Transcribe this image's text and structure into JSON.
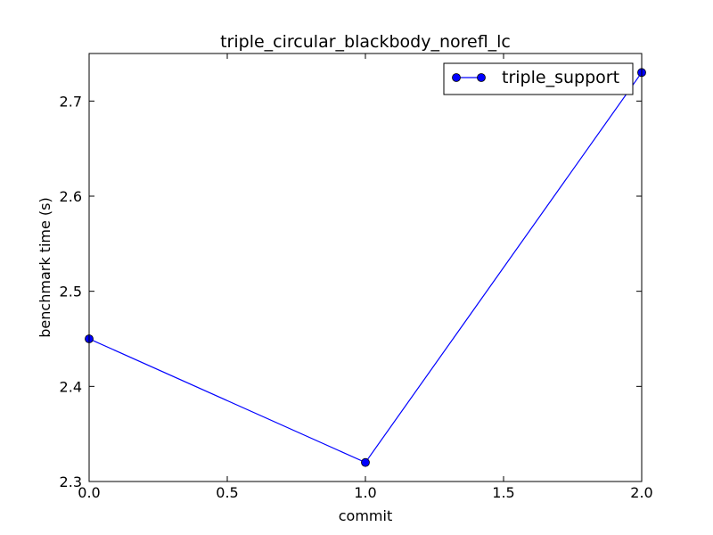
{
  "chart_data": {
    "type": "line",
    "title": "triple_circular_blackbody_norefl_lc",
    "xlabel": "commit",
    "ylabel": "benchmark time (s)",
    "xlim": [
      0.0,
      2.0
    ],
    "ylim": [
      2.3,
      2.75
    ],
    "xticks": [
      0.0,
      0.5,
      1.0,
      1.5,
      2.0
    ],
    "xtick_labels": [
      "0.0",
      "0.5",
      "1.0",
      "1.5",
      "2.0"
    ],
    "yticks": [
      2.3,
      2.4,
      2.5,
      2.6,
      2.7
    ],
    "ytick_labels": [
      "2.3",
      "2.4",
      "2.5",
      "2.6",
      "2.7"
    ],
    "grid": false,
    "legend_position": "top-right",
    "series": [
      {
        "name": "triple_support",
        "color": "#0000ff",
        "marker": "circle",
        "x": [
          0.0,
          1.0,
          2.0
        ],
        "y": [
          2.45,
          2.32,
          2.73
        ]
      }
    ]
  }
}
